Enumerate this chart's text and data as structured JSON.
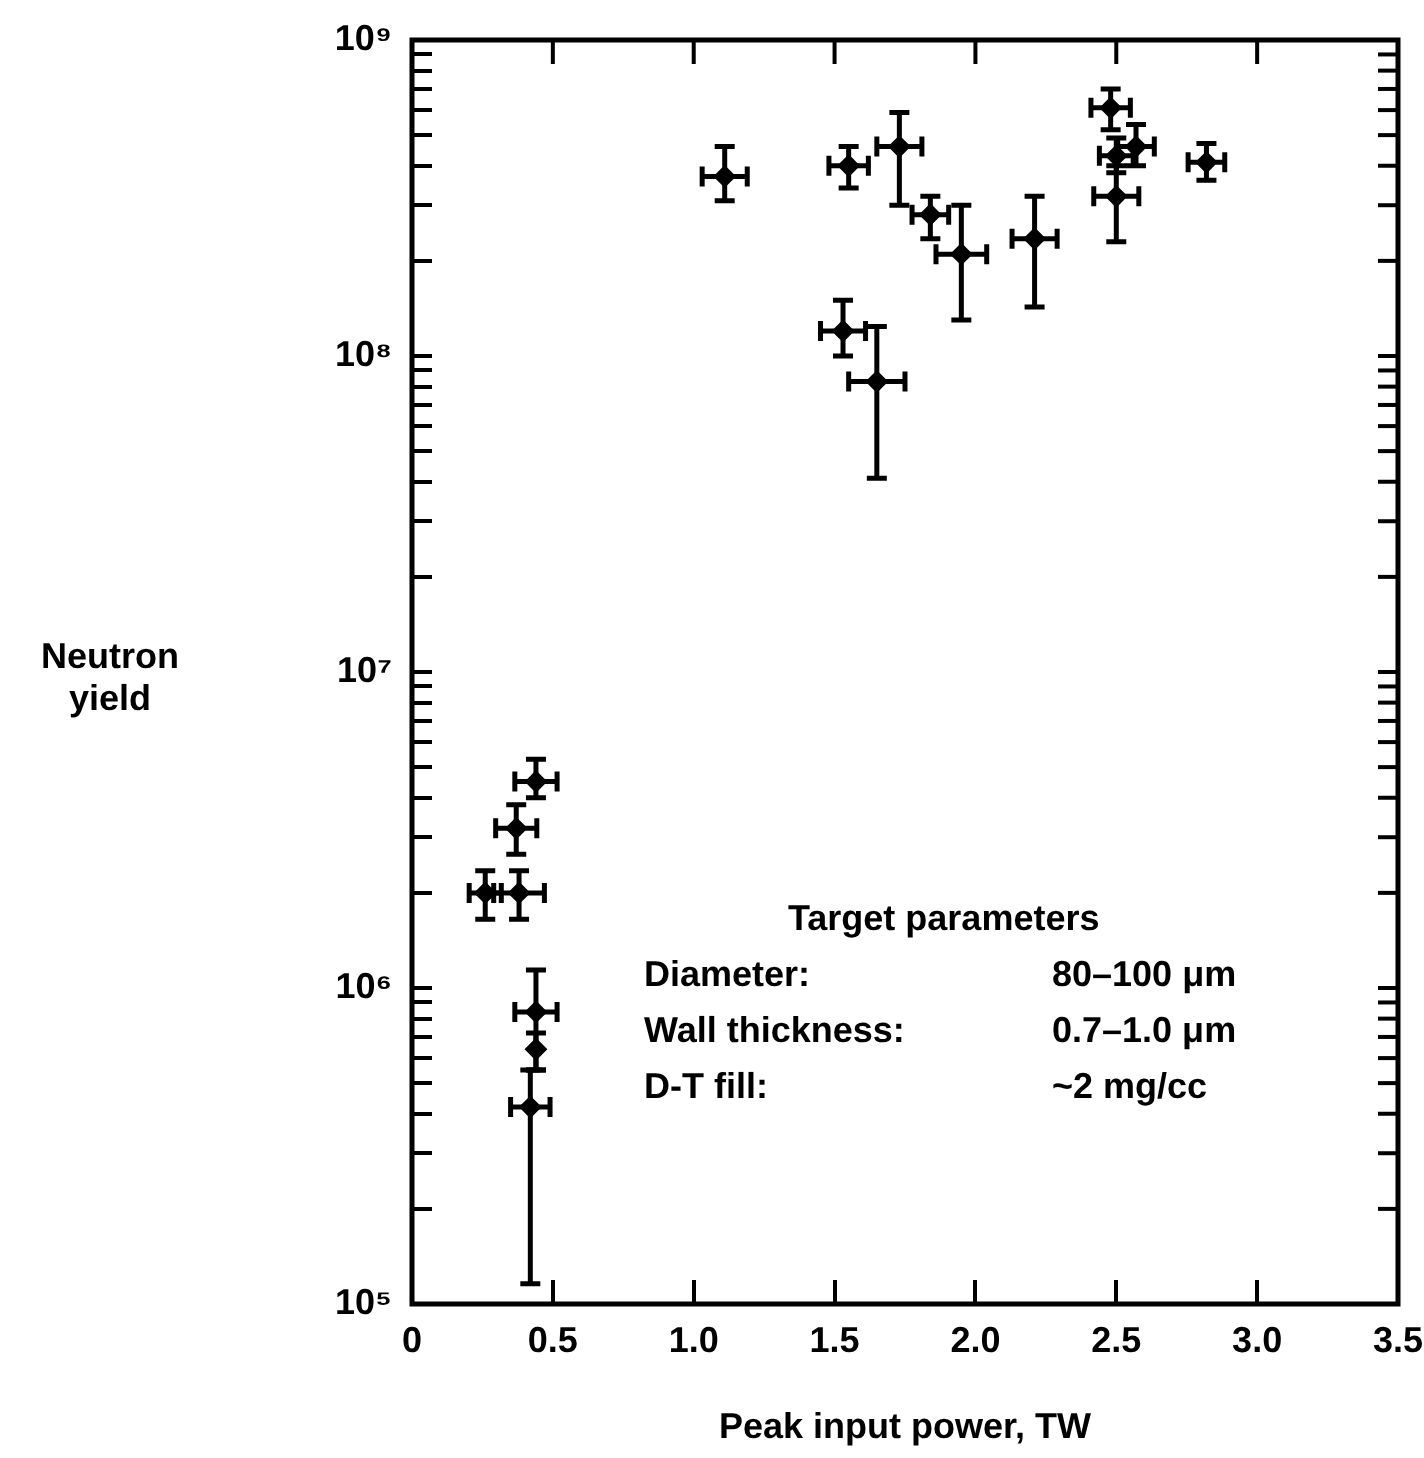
{
  "chart_data": {
    "type": "scatter",
    "xlabel": "Peak input power, TW",
    "ylabel": "Neutron yield",
    "xlim": [
      0,
      3.5
    ],
    "xticks": [
      0,
      0.5,
      {
        "value": 1,
        "label": "1.0"
      },
      1.5,
      {
        "value": 2,
        "label": "2.0"
      },
      2.5,
      {
        "value": 3,
        "label": "3.0"
      },
      3.5
    ],
    "ylim": [
      100000,
      1000000000
    ],
    "log": "y",
    "yticks": [
      {
        "value": 100000,
        "label": "10⁵"
      },
      {
        "value": 200000,
        "label": null
      },
      {
        "value": 300000,
        "label": null
      },
      {
        "value": 400000,
        "label": null
      },
      {
        "value": 500000,
        "label": null
      },
      {
        "value": 600000,
        "label": null
      },
      {
        "value": 700000,
        "label": null
      },
      {
        "value": 800000,
        "label": null
      },
      {
        "value": 900000,
        "label": null
      },
      {
        "value": 1000000,
        "label": "10⁶"
      },
      {
        "value": 2000000,
        "label": null
      },
      {
        "value": 3000000,
        "label": null
      },
      {
        "value": 4000000,
        "label": null
      },
      {
        "value": 5000000,
        "label": null
      },
      {
        "value": 6000000,
        "label": null
      },
      {
        "value": 7000000,
        "label": null
      },
      {
        "value": 8000000,
        "label": null
      },
      {
        "value": 9000000,
        "label": null
      },
      {
        "value": 10000000,
        "label": "10⁷"
      },
      {
        "value": 20000000,
        "label": null
      },
      {
        "value": 30000000,
        "label": null
      },
      {
        "value": 40000000,
        "label": null
      },
      {
        "value": 50000000,
        "label": null
      },
      {
        "value": 60000000,
        "label": null
      },
      {
        "value": 70000000,
        "label": null
      },
      {
        "value": 80000000,
        "label": null
      },
      {
        "value": 90000000,
        "label": null
      },
      {
        "value": 100000000,
        "label": "10⁸"
      },
      {
        "value": 200000000,
        "label": null
      },
      {
        "value": 300000000,
        "label": null
      },
      {
        "value": 400000000,
        "label": null
      },
      {
        "value": 500000000,
        "label": null
      },
      {
        "value": 600000000,
        "label": null
      },
      {
        "value": 700000000,
        "label": null
      },
      {
        "value": 800000000,
        "label": null
      },
      {
        "value": 900000000,
        "label": null
      },
      {
        "value": 1000000000,
        "label": "10⁹"
      }
    ],
    "marker": "diamond",
    "annotations": [
      "Target parameters",
      "Diameter:",
      "80–100 μm",
      "Wall thickness:",
      "0.7–1.0 μm",
      "D-T fill:",
      "~2 mg/cc"
    ],
    "series": [
      {
        "color": "#000000",
        "x": [
          1.11,
          1.55,
          1.73,
          1.84,
          1.95,
          2.21,
          2.48,
          2.5,
          2.57,
          2.5,
          2.82,
          1.53,
          1.65,
          0.44,
          0.37,
          0.26,
          0.38,
          0.44,
          0.44,
          0.42
        ],
        "values": [
          370000000,
          400000000,
          460000000,
          280000000,
          210000000,
          235000000,
          610000000,
          430000000,
          460000000,
          320000000,
          410000000,
          120000000,
          83000000,
          4500000,
          3200000,
          2000000,
          2000000,
          840000,
          640000,
          420000
        ],
        "errors": [
          [
            310000000,
            460000000
          ],
          [
            340000000,
            460000000
          ],
          [
            300000000,
            590000000
          ],
          [
            235000000,
            320000000
          ],
          [
            130000000,
            300000000
          ],
          [
            143000000,
            320000000
          ],
          [
            520000000,
            700000000
          ],
          [
            380000000,
            490000000
          ],
          [
            400000000,
            540000000
          ],
          [
            230000000,
            400000000
          ],
          [
            360000000,
            470000000
          ],
          [
            100000000,
            150000000
          ],
          [
            41000000,
            124000000
          ],
          [
            4000000,
            5300000
          ],
          [
            2650000,
            3800000
          ],
          [
            1650000,
            2350000
          ],
          [
            1650000,
            2350000
          ],
          [
            550000,
            1140000
          ],
          [
            550000,
            720000
          ],
          [
            116000,
            550000
          ]
        ],
        "xerrors": [
          0.08,
          0.07,
          0.08,
          0.065,
          0.09,
          0.08,
          0.07,
          0.06,
          0.065,
          0.08,
          0.065,
          0.08,
          0.1,
          0.075,
          0.073,
          0.057,
          0.09,
          0.075,
          null,
          0.07
        ]
      }
    ]
  }
}
